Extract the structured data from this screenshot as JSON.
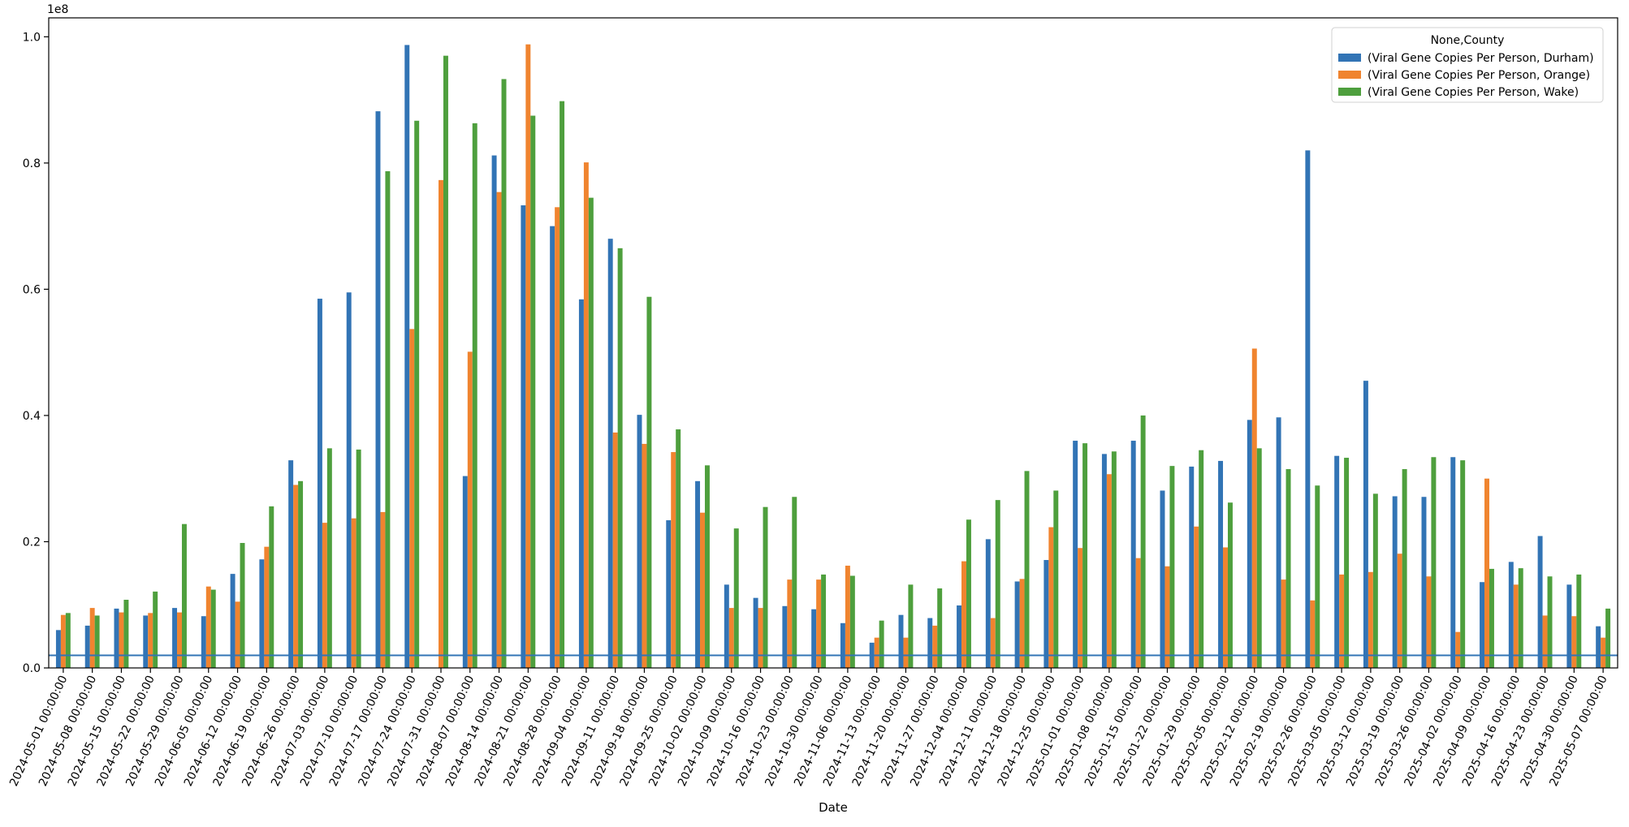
{
  "chart_data": {
    "type": "bar",
    "xlabel": "Date",
    "ylabel": "",
    "y_offset_text": "1e8",
    "ylim": [
      0,
      1.03
    ],
    "yticks": [
      0.0,
      0.2,
      0.4,
      0.6,
      0.8,
      1.0
    ],
    "ytick_labels": [
      "0.0",
      "0.2",
      "0.4",
      "0.6",
      "0.8",
      "1.0"
    ],
    "hline": 0.02,
    "legend_title": "None,County",
    "legend_position": "top-right",
    "categories": [
      "2024-05-01 00:00:00",
      "2024-05-08 00:00:00",
      "2024-05-15 00:00:00",
      "2024-05-22 00:00:00",
      "2024-05-29 00:00:00",
      "2024-06-05 00:00:00",
      "2024-06-12 00:00:00",
      "2024-06-19 00:00:00",
      "2024-06-26 00:00:00",
      "2024-07-03 00:00:00",
      "2024-07-10 00:00:00",
      "2024-07-17 00:00:00",
      "2024-07-24 00:00:00",
      "2024-07-31 00:00:00",
      "2024-08-07 00:00:00",
      "2024-08-14 00:00:00",
      "2024-08-21 00:00:00",
      "2024-08-28 00:00:00",
      "2024-09-04 00:00:00",
      "2024-09-11 00:00:00",
      "2024-09-18 00:00:00",
      "2024-09-25 00:00:00",
      "2024-10-02 00:00:00",
      "2024-10-09 00:00:00",
      "2024-10-16 00:00:00",
      "2024-10-23 00:00:00",
      "2024-10-30 00:00:00",
      "2024-11-06 00:00:00",
      "2024-11-13 00:00:00",
      "2024-11-20 00:00:00",
      "2024-11-27 00:00:00",
      "2024-12-04 00:00:00",
      "2024-12-11 00:00:00",
      "2024-12-18 00:00:00",
      "2024-12-25 00:00:00",
      "2025-01-01 00:00:00",
      "2025-01-08 00:00:00",
      "2025-01-15 00:00:00",
      "2025-01-22 00:00:00",
      "2025-01-29 00:00:00",
      "2025-02-05 00:00:00",
      "2025-02-12 00:00:00",
      "2025-02-19 00:00:00",
      "2025-02-26 00:00:00",
      "2025-03-05 00:00:00",
      "2025-03-12 00:00:00",
      "2025-03-19 00:00:00",
      "2025-03-26 00:00:00",
      "2025-04-02 00:00:00",
      "2025-04-09 00:00:00",
      "2025-04-16 00:00:00",
      "2025-04-23 00:00:00",
      "2025-04-30 00:00:00",
      "2025-05-07 00:00:00"
    ],
    "series": [
      {
        "name": "(Viral Gene Copies Per Person, Durham)",
        "color": "#3274b5",
        "values": [
          0.06,
          0.067,
          0.094,
          0.083,
          0.095,
          0.082,
          0.149,
          0.172,
          0.329,
          0.585,
          0.595,
          0.882,
          0.987,
          0.0,
          0.304,
          0.812,
          0.733,
          0.7,
          0.584,
          0.68,
          0.401,
          0.234,
          0.296,
          0.132,
          0.111,
          0.098,
          0.093,
          0.071,
          0.04,
          0.084,
          0.079,
          0.099,
          0.204,
          0.137,
          0.171,
          0.36,
          0.339,
          0.36,
          0.281,
          0.319,
          0.328,
          0.393,
          0.397,
          0.82,
          0.336,
          0.455,
          0.272,
          0.271,
          0.334,
          0.136,
          0.168,
          0.209,
          0.132,
          0.066
        ]
      },
      {
        "name": "(Viral Gene Copies Per Person, Orange)",
        "color": "#f0842f",
        "values": [
          0.084,
          0.095,
          0.088,
          0.087,
          0.088,
          0.129,
          0.105,
          0.192,
          0.29,
          0.23,
          0.237,
          0.247,
          0.537,
          0.773,
          0.501,
          0.754,
          0.988,
          0.73,
          0.801,
          0.373,
          0.355,
          0.342,
          0.246,
          0.095,
          0.095,
          0.14,
          0.14,
          0.162,
          0.048,
          0.048,
          0.067,
          0.169,
          0.079,
          0.141,
          0.223,
          0.19,
          0.307,
          0.174,
          0.161,
          0.224,
          0.191,
          0.506,
          0.14,
          0.107,
          0.148,
          0.152,
          0.181,
          0.145,
          0.057,
          0.3,
          0.132,
          0.083,
          0.082,
          0.048
        ]
      },
      {
        "name": "(Viral Gene Copies Per Person, Wake)",
        "color": "#4e9f3d",
        "values": [
          0.087,
          0.083,
          0.108,
          0.121,
          0.228,
          0.124,
          0.198,
          0.256,
          0.296,
          0.348,
          0.346,
          0.787,
          0.867,
          0.97,
          0.863,
          0.933,
          0.875,
          0.898,
          0.745,
          0.665,
          0.588,
          0.378,
          0.321,
          0.221,
          0.255,
          0.271,
          0.148,
          0.146,
          0.075,
          0.132,
          0.126,
          0.235,
          0.266,
          0.312,
          0.281,
          0.356,
          0.343,
          0.4,
          0.32,
          0.345,
          0.262,
          0.348,
          0.315,
          0.289,
          0.333,
          0.276,
          0.315,
          0.334,
          0.329,
          0.157,
          0.158,
          0.145,
          0.148,
          0.094
        ]
      }
    ]
  }
}
